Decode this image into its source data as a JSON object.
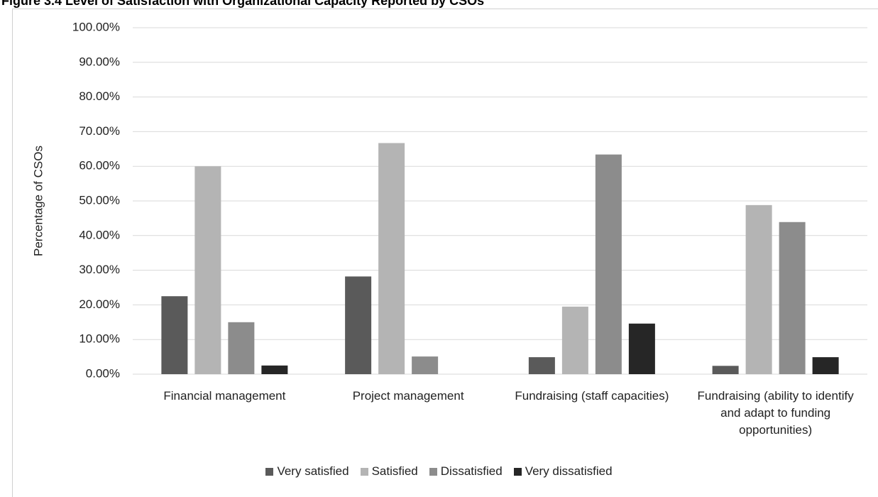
{
  "chart_data": {
    "type": "bar",
    "title": "Figure 3.4 Level of Satisfaction with Organizational Capacity Reported by CSOs",
    "y_label": "Percentage of CSOs",
    "categories": [
      "Financial management",
      "Project management",
      "Fundraising (staff capacities)",
      "Fundraising (ability to identify and adapt to funding opportunities)"
    ],
    "series": [
      {
        "name": "Very satisfied",
        "color": "#5a5a5a",
        "values": [
          22.5,
          28.2,
          4.9,
          2.4
        ]
      },
      {
        "name": "Satisfied",
        "color": "#b4b4b4",
        "values": [
          60,
          66.7,
          19.5,
          48.8
        ]
      },
      {
        "name": "Dissatisfied",
        "color": "#8c8c8c",
        "values": [
          15,
          5.1,
          63.4,
          43.9
        ]
      },
      {
        "name": "Very dissatisfied",
        "color": "#262626",
        "values": [
          2.5,
          0,
          14.6,
          4.9
        ]
      }
    ],
    "ylim": [
      0,
      100
    ],
    "yticks": [
      {
        "value": 0,
        "label": "0.00%"
      },
      {
        "value": 10,
        "label": "10.00%"
      },
      {
        "value": 20,
        "label": "20.00%"
      },
      {
        "value": 30,
        "label": "30.00%"
      },
      {
        "value": 40,
        "label": "40.00%"
      },
      {
        "value": 50,
        "label": "50.00%"
      },
      {
        "value": 60,
        "label": "60.00%"
      },
      {
        "value": 70,
        "label": "70.00%"
      },
      {
        "value": 80,
        "label": "80.00%"
      },
      {
        "value": 90,
        "label": "90.00%"
      },
      {
        "value": 100,
        "label": "100.00%"
      }
    ],
    "grid": true,
    "legend": "bottom"
  }
}
